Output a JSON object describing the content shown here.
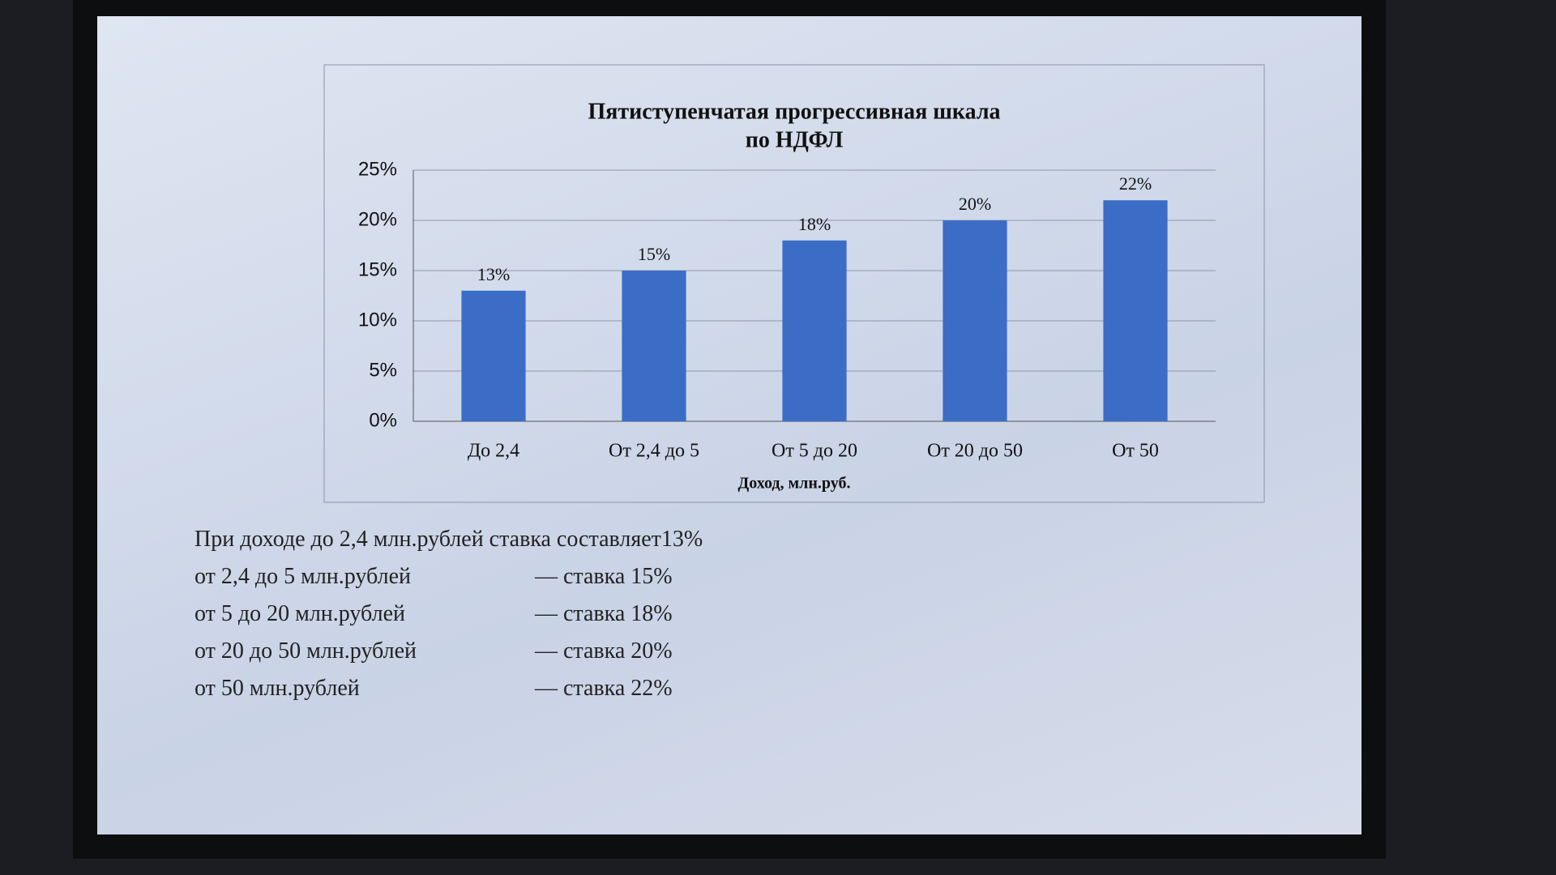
{
  "chart_data": {
    "type": "bar",
    "title": [
      "Пятиступенчатая прогрессивная шкала",
      "по НДФЛ"
    ],
    "x_label": "Доход, млн.руб.",
    "categories": [
      "До 2,4",
      "От 2,4 до 5",
      "От 5 до 20",
      "От 20 до 50",
      "От 50"
    ],
    "values": [
      13,
      15,
      18,
      20,
      22
    ],
    "value_labels": [
      "13%",
      "15%",
      "18%",
      "20%",
      "22%"
    ],
    "color": "#3b6dc7",
    "ylim": [
      0,
      25
    ],
    "yticks": [
      {
        "value": 0,
        "label": "0%"
      },
      {
        "value": 5,
        "label": "5%"
      },
      {
        "value": 10,
        "label": "10%"
      },
      {
        "value": 15,
        "label": "15%"
      },
      {
        "value": 20,
        "label": "20%"
      },
      {
        "value": 25,
        "label": "25%"
      }
    ],
    "grid": true
  },
  "notes": {
    "intro": "При доходе до 2,4 млн.рублей ставка составляет13%",
    "rows": [
      [
        "от 2,4 до 5 млн.рублей",
        "— ставка 15%"
      ],
      [
        "от 5 до 20 млн.рублей",
        "— ставка 18%"
      ],
      [
        "от 20 до 50 млн.рублей",
        "— ставка 20%"
      ],
      [
        "от 50 млн.рублей",
        "— ставка 22%"
      ]
    ]
  }
}
